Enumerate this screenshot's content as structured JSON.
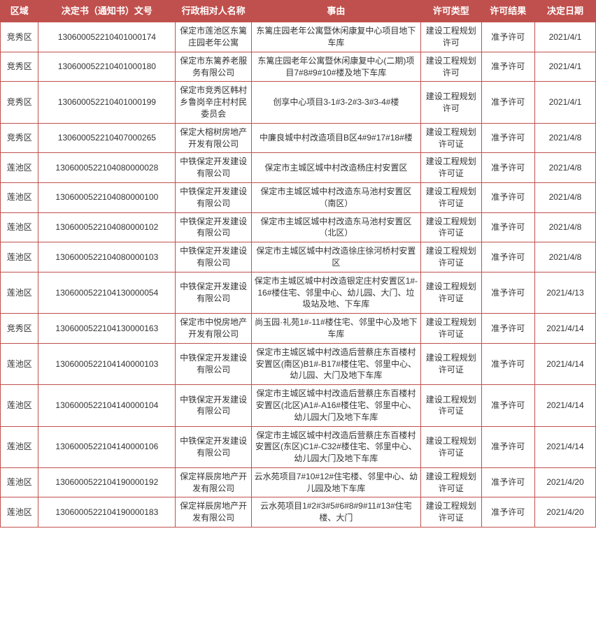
{
  "table": {
    "headers": {
      "region": "区域",
      "docno": "决定书（通知书）文号",
      "party": "行政相对人名称",
      "reason": "事由",
      "type": "许可类型",
      "result": "许可结果",
      "date": "决定日期"
    },
    "rows": [
      {
        "region": "竞秀区",
        "docno": "130600052210401000174",
        "party": "保定市莲池区东篱庄园老年公寓",
        "reason": "东篱庄园老年公寓暨休闲康复中心项目地下车库",
        "type": "建设工程规划许可",
        "result": "准予许可",
        "date": "2021/4/1"
      },
      {
        "region": "竞秀区",
        "docno": "130600052210401000180",
        "party": "保定市东篱养老服务有限公司",
        "reason": "东篱庄园老年公寓暨休闲康复中心(二期)项目7#8#9#10#楼及地下车库",
        "type": "建设工程规划许可",
        "result": "准予许可",
        "date": "2021/4/1"
      },
      {
        "region": "竞秀区",
        "docno": "130600052210401000199",
        "party": "保定市竞秀区韩村乡鲁岗辛庄村村民委员会",
        "reason": "创享中心项目3-1#3-2#3-3#3-4#楼",
        "type": "建设工程规划许可",
        "result": "准予许可",
        "date": "2021/4/1"
      },
      {
        "region": "竞秀区",
        "docno": "130600052210407000265",
        "party": "保定大榕树房地产开发有限公司",
        "reason": "中廉良城中村改造项目B区4#9#17#18#楼",
        "type": "建设工程规划许可证",
        "result": "准予许可",
        "date": "2021/4/8"
      },
      {
        "region": "莲池区",
        "docno": "1306000522104080000028",
        "party": "中铁保定开发建设有限公司",
        "reason": "保定市主城区城中村改造杨庄村安置区",
        "type": "建设工程规划许可证",
        "result": "准予许可",
        "date": "2021/4/8"
      },
      {
        "region": "莲池区",
        "docno": "1306000522104080000100",
        "party": "中铁保定开发建设有限公司",
        "reason": "保定市主城区城中村改造东马池村安置区（南区）",
        "type": "建设工程规划许可证",
        "result": "准予许可",
        "date": "2021/4/8"
      },
      {
        "region": "莲池区",
        "docno": "1306000522104080000102",
        "party": "中铁保定开发建设有限公司",
        "reason": "保定市主城区城中村改造东马池村安置区（北区）",
        "type": "建设工程规划许可证",
        "result": "准予许可",
        "date": "2021/4/8"
      },
      {
        "region": "莲池区",
        "docno": "1306000522104080000103",
        "party": "中铁保定开发建设有限公司",
        "reason": "保定市主城区城中村改造徐庄徐河桥村安置区",
        "type": "建设工程规划许可证",
        "result": "准予许可",
        "date": "2021/4/8"
      },
      {
        "region": "莲池区",
        "docno": "1306000522104130000054",
        "party": "中铁保定开发建设有限公司",
        "reason": "保定市主城区城中村改造银定庄村安置区1#-16#楼住宅、邻里中心、幼儿园、大门、垃圾站及地、下车库",
        "type": "建设工程规划许可证",
        "result": "准予许可",
        "date": "2021/4/13"
      },
      {
        "region": "竞秀区",
        "docno": "1306000522104130000163",
        "party": "保定市中悦房地产开发有限公司",
        "reason": "尚玉园·礼苑1#-11#楼住宅、邻里中心及地下车库",
        "type": "建设工程规划许可证",
        "result": "准予许可",
        "date": "2021/4/14"
      },
      {
        "region": "莲池区",
        "docno": "1306000522104140000103",
        "party": "中铁保定开发建设有限公司",
        "reason": "保定市主城区城中村改造后营蔡庄东百楼村安置区(南区)B1#-B17#楼住宅、邻里中心、幼儿园、大门及地下车库",
        "type": "建设工程规划许可证",
        "result": "准予许可",
        "date": "2021/4/14"
      },
      {
        "region": "莲池区",
        "docno": "1306000522104140000104",
        "party": "中铁保定开发建设有限公司",
        "reason": "保定市主城区城中村改造后营蔡庄东百楼村安置区(北区)A1#-A16#楼住宅、邻里中心、幼儿园大门及地下车库",
        "type": "建设工程规划许可证",
        "result": "准予许可",
        "date": "2021/4/14"
      },
      {
        "region": "莲池区",
        "docno": "1306000522104140000106",
        "party": "中铁保定开发建设有限公司",
        "reason": "保定市主城区城中村改造后营蔡庄东百楼村安置区(东区)C1#-C32#楼住宅、邻里中心、幼儿园大门及地下车库",
        "type": "建设工程规划许可证",
        "result": "准予许可",
        "date": "2021/4/14"
      },
      {
        "region": "莲池区",
        "docno": "1306000522104190000192",
        "party": "保定祥辰房地产开发有限公司",
        "reason": "云水苑项目7#10#12#住宅楼、邻里中心、幼儿园及地下车库",
        "type": "建设工程规划许可证",
        "result": "准予许可",
        "date": "2021/4/20"
      },
      {
        "region": "莲池区",
        "docno": "1306000522104190000183",
        "party": "保定祥辰房地产开发有限公司",
        "reason": "云水苑项目1#2#3#5#6#8#9#11#13#住宅楼、大门",
        "type": "建设工程规划许可证",
        "result": "准予许可",
        "date": "2021/4/20"
      }
    ]
  },
  "style": {
    "header_bg": "#c0504d",
    "header_color": "#ffffff",
    "border_color": "#c0504d",
    "cell_color": "#333333",
    "font_size_header": 13,
    "font_size_cell": 12
  }
}
